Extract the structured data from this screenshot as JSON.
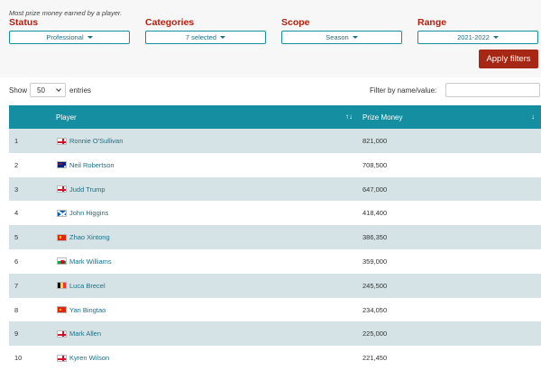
{
  "caption": "Most prize money earned by a player.",
  "filters": [
    {
      "label": "Status",
      "value": "Professional",
      "name": "status"
    },
    {
      "label": "Categories",
      "value": "7 selected",
      "name": "categories"
    },
    {
      "label": "Scope",
      "value": "Season",
      "name": "scope"
    },
    {
      "label": "Range",
      "value": "2021-2022",
      "name": "range"
    }
  ],
  "apply_label": "Apply filters",
  "controls": {
    "show_label": "Show",
    "entries_value": "50",
    "entries_label": "entries",
    "filter_label": "Filter by name/value:",
    "filter_value": ""
  },
  "table": {
    "header_player": "Player",
    "header_money": "Prize Money",
    "sort_icon_player": "↑↓",
    "sort_icon_money": "↓",
    "rows": [
      {
        "rank": "1",
        "flag": "england",
        "name": "Ronnie O'Sullivan",
        "money": "821,000"
      },
      {
        "rank": "2",
        "flag": "australia",
        "name": "Neil Robertson",
        "money": "708,500"
      },
      {
        "rank": "3",
        "flag": "england",
        "name": "Judd Trump",
        "money": "647,000"
      },
      {
        "rank": "4",
        "flag": "scotland",
        "name": "John Higgins",
        "money": "418,400"
      },
      {
        "rank": "5",
        "flag": "china",
        "name": "Zhao Xintong",
        "money": "386,350"
      },
      {
        "rank": "6",
        "flag": "wales",
        "name": "Mark Williams",
        "money": "359,000"
      },
      {
        "rank": "7",
        "flag": "belgium",
        "name": "Luca Brecel",
        "money": "245,500"
      },
      {
        "rank": "8",
        "flag": "china",
        "name": "Yan Bingtao",
        "money": "234,050"
      },
      {
        "rank": "9",
        "flag": "england",
        "name": "Mark Allen",
        "money": "225,000"
      },
      {
        "rank": "10",
        "flag": "england",
        "name": "Kyren Wilson",
        "money": "221,450"
      }
    ]
  },
  "colors": {
    "accent": "#148ea0",
    "label_red": "#b5200f",
    "button_red": "#a52714",
    "link": "#1a6f86",
    "row_stripe": "#d6e3e6"
  }
}
